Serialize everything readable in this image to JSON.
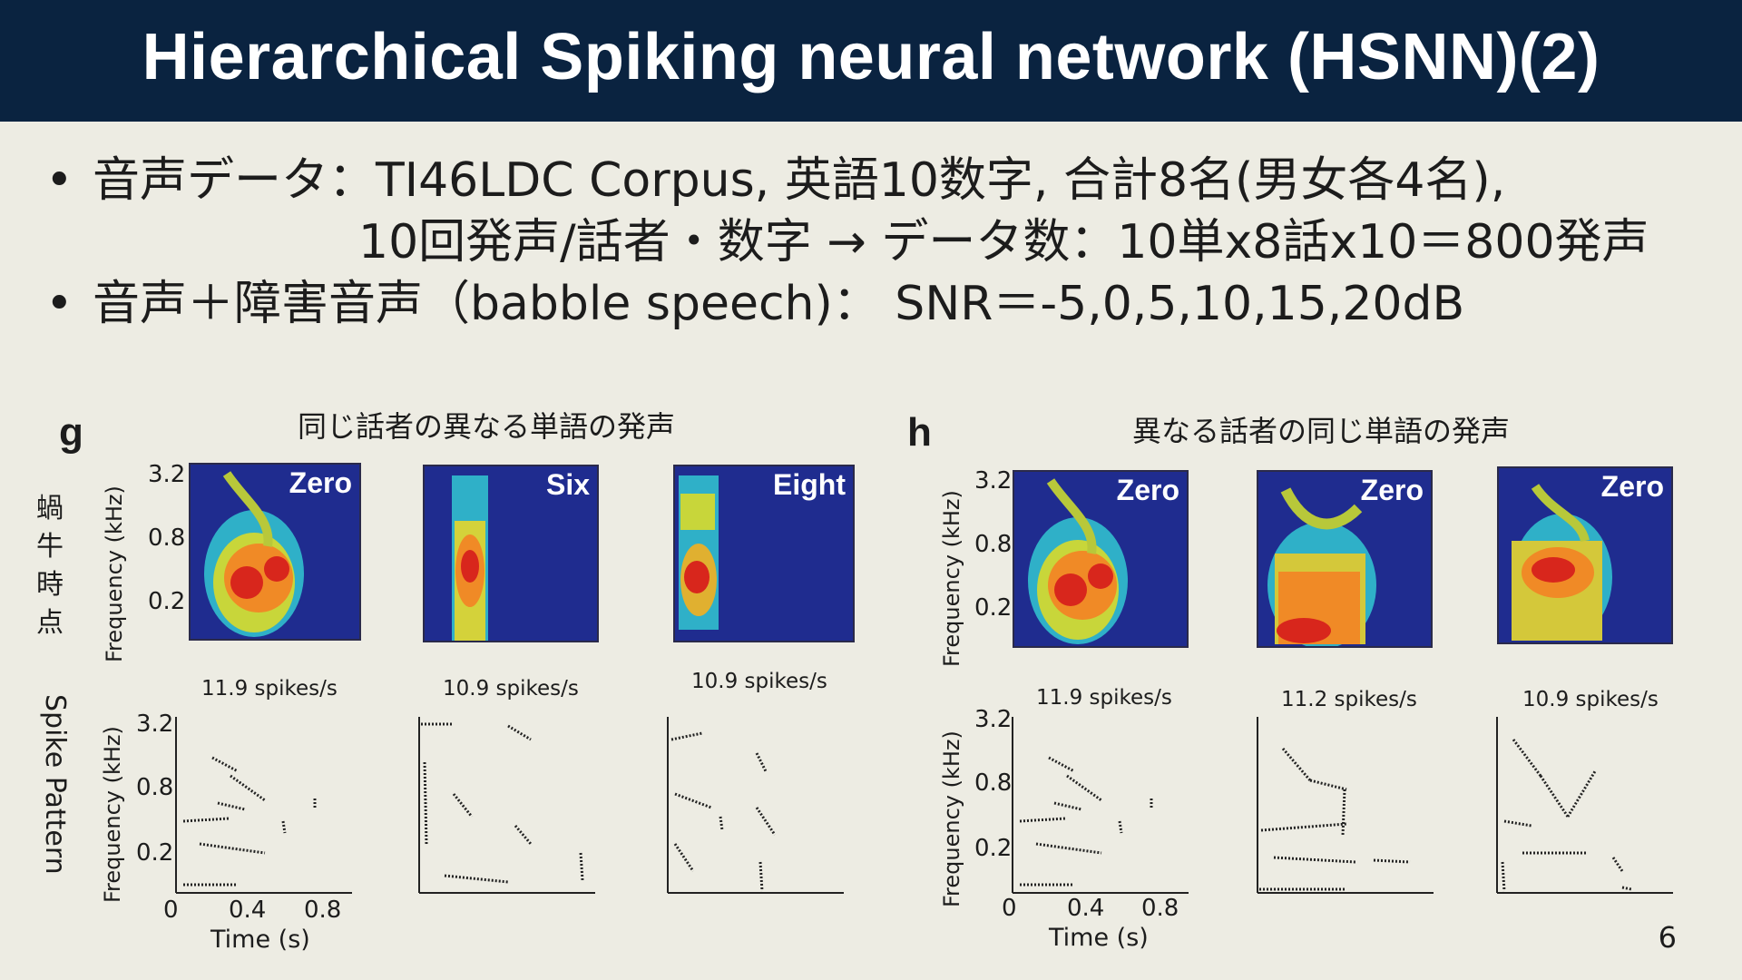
{
  "slide": {
    "title": "Hierarchical Spiking neural network (HSNN)(2)",
    "page_number": "6"
  },
  "bullets": [
    {
      "marker": "•",
      "text": "音声データ：TI46LDC Corpus,  英語10数字,  合計8名(男女各4名),"
    },
    {
      "marker": "",
      "text": "10回発声/話者・数字 → データ数：10単x8話x10＝800発声"
    },
    {
      "marker": "•",
      "text": "音声＋障害音声（babble speech)：    SNR＝-5,0,5,10,15,20dB"
    }
  ],
  "figure": {
    "row_labels": {
      "cochlear": "蝸牛時点",
      "spike": "Spike  Pattern"
    },
    "panel_g": {
      "letter": "g",
      "caption": "同じ話者の異なる単語の発声",
      "words": [
        "Zero",
        "Six",
        "Eight"
      ],
      "rates": [
        "11.9 spikes/s",
        "10.9 spikes/s",
        "10.9 spikes/s"
      ]
    },
    "panel_h": {
      "letter": "h",
      "caption": "異なる話者の同じ単語の発声",
      "words": [
        "Zero",
        "Zero",
        "Zero"
      ],
      "rates": [
        "11.9 spikes/s",
        "11.2 spikes/s",
        "10.9 spikes/s"
      ]
    },
    "axes": {
      "ylabel": "Frequency (kHz)",
      "yticks": [
        "3.2",
        "0.8",
        "0.2"
      ],
      "xlabel": "Time (s)",
      "xticks": [
        "0",
        "0.4",
        "0.8"
      ]
    }
  }
}
